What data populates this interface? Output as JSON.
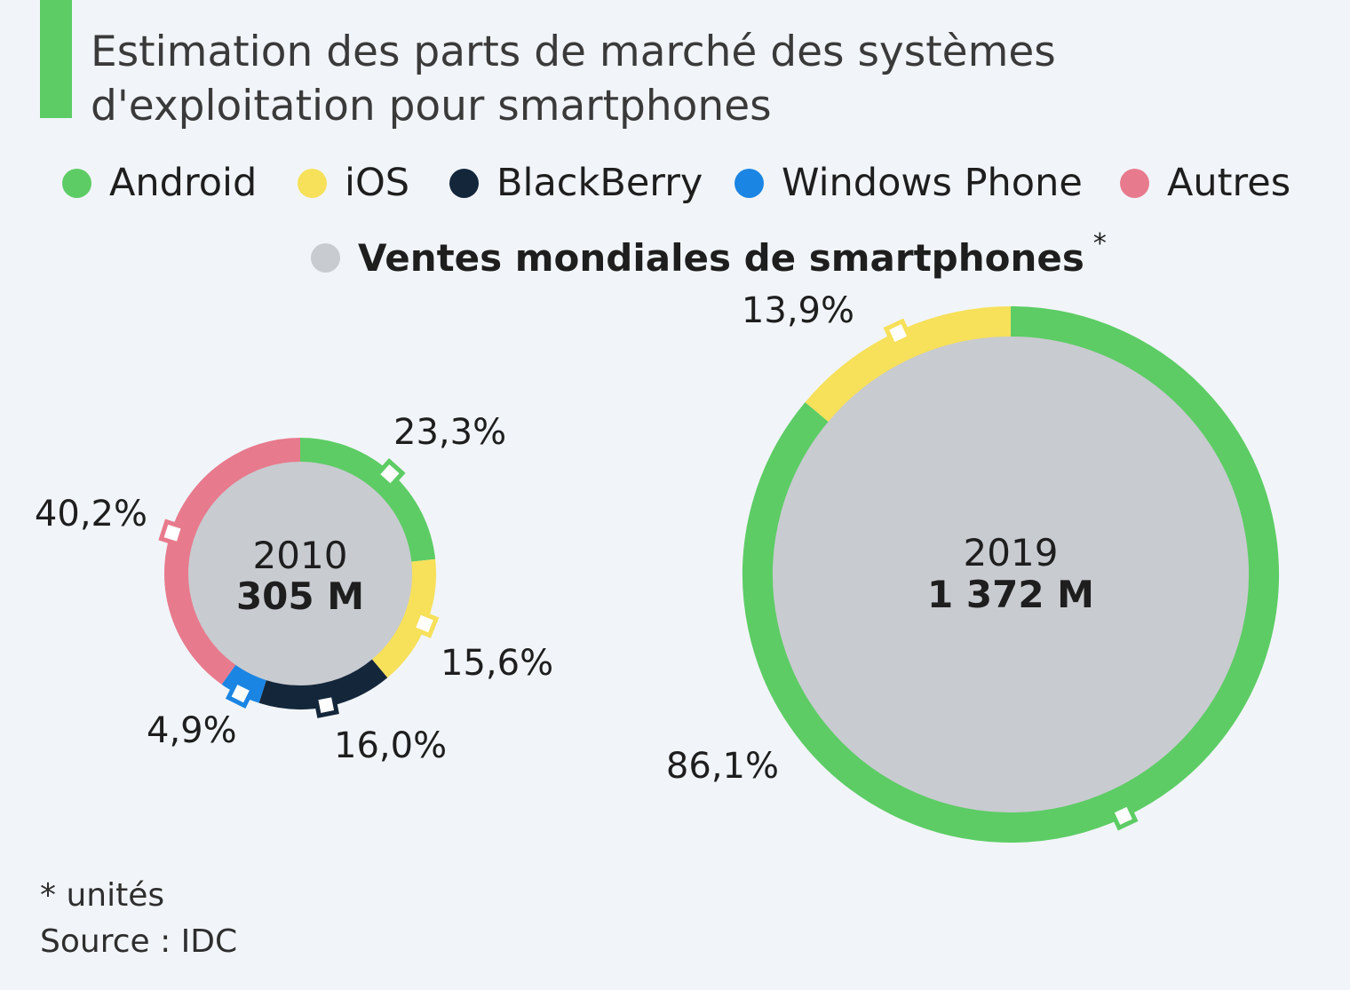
{
  "subtitle_lines": [
    "Estimation des parts de marché des systèmes",
    "d'exploitation pour smartphones"
  ],
  "legend": [
    {
      "label": "Android",
      "color": "#5dcc65"
    },
    {
      "label": "iOS",
      "color": "#f7e05a"
    },
    {
      "label": "BlackBerry",
      "color": "#14263a"
    },
    {
      "label": "Windows Phone",
      "color": "#1b85e3"
    },
    {
      "label": "Autres",
      "color": "#e87a8d"
    }
  ],
  "sales_legend": {
    "label": "Ventes mondiales de smartphones",
    "marker": "*",
    "color": "#c8cbd0"
  },
  "accent_color": "#5dcc65",
  "footnotes": {
    "units": "* unités",
    "source": "Source : IDC"
  },
  "chart_data": {
    "type": "pie",
    "variant": "donut",
    "unit": "%",
    "series": [
      {
        "year": "2010",
        "total": "305 M",
        "segments": [
          {
            "category": "Android",
            "value": 23.3,
            "label": "23,3%"
          },
          {
            "category": "iOS",
            "value": 15.6,
            "label": "15,6%"
          },
          {
            "category": "BlackBerry",
            "value": 16.0,
            "label": "16,0%"
          },
          {
            "category": "Windows Phone",
            "value": 4.9,
            "label": "4,9%"
          },
          {
            "category": "Autres",
            "value": 40.2,
            "label": "40,2%"
          }
        ]
      },
      {
        "year": "2019",
        "total": "1 372 M",
        "segments": [
          {
            "category": "Android",
            "value": 86.1,
            "label": "86,1%"
          },
          {
            "category": "iOS",
            "value": 13.9,
            "label": "13,9%"
          }
        ]
      }
    ]
  }
}
